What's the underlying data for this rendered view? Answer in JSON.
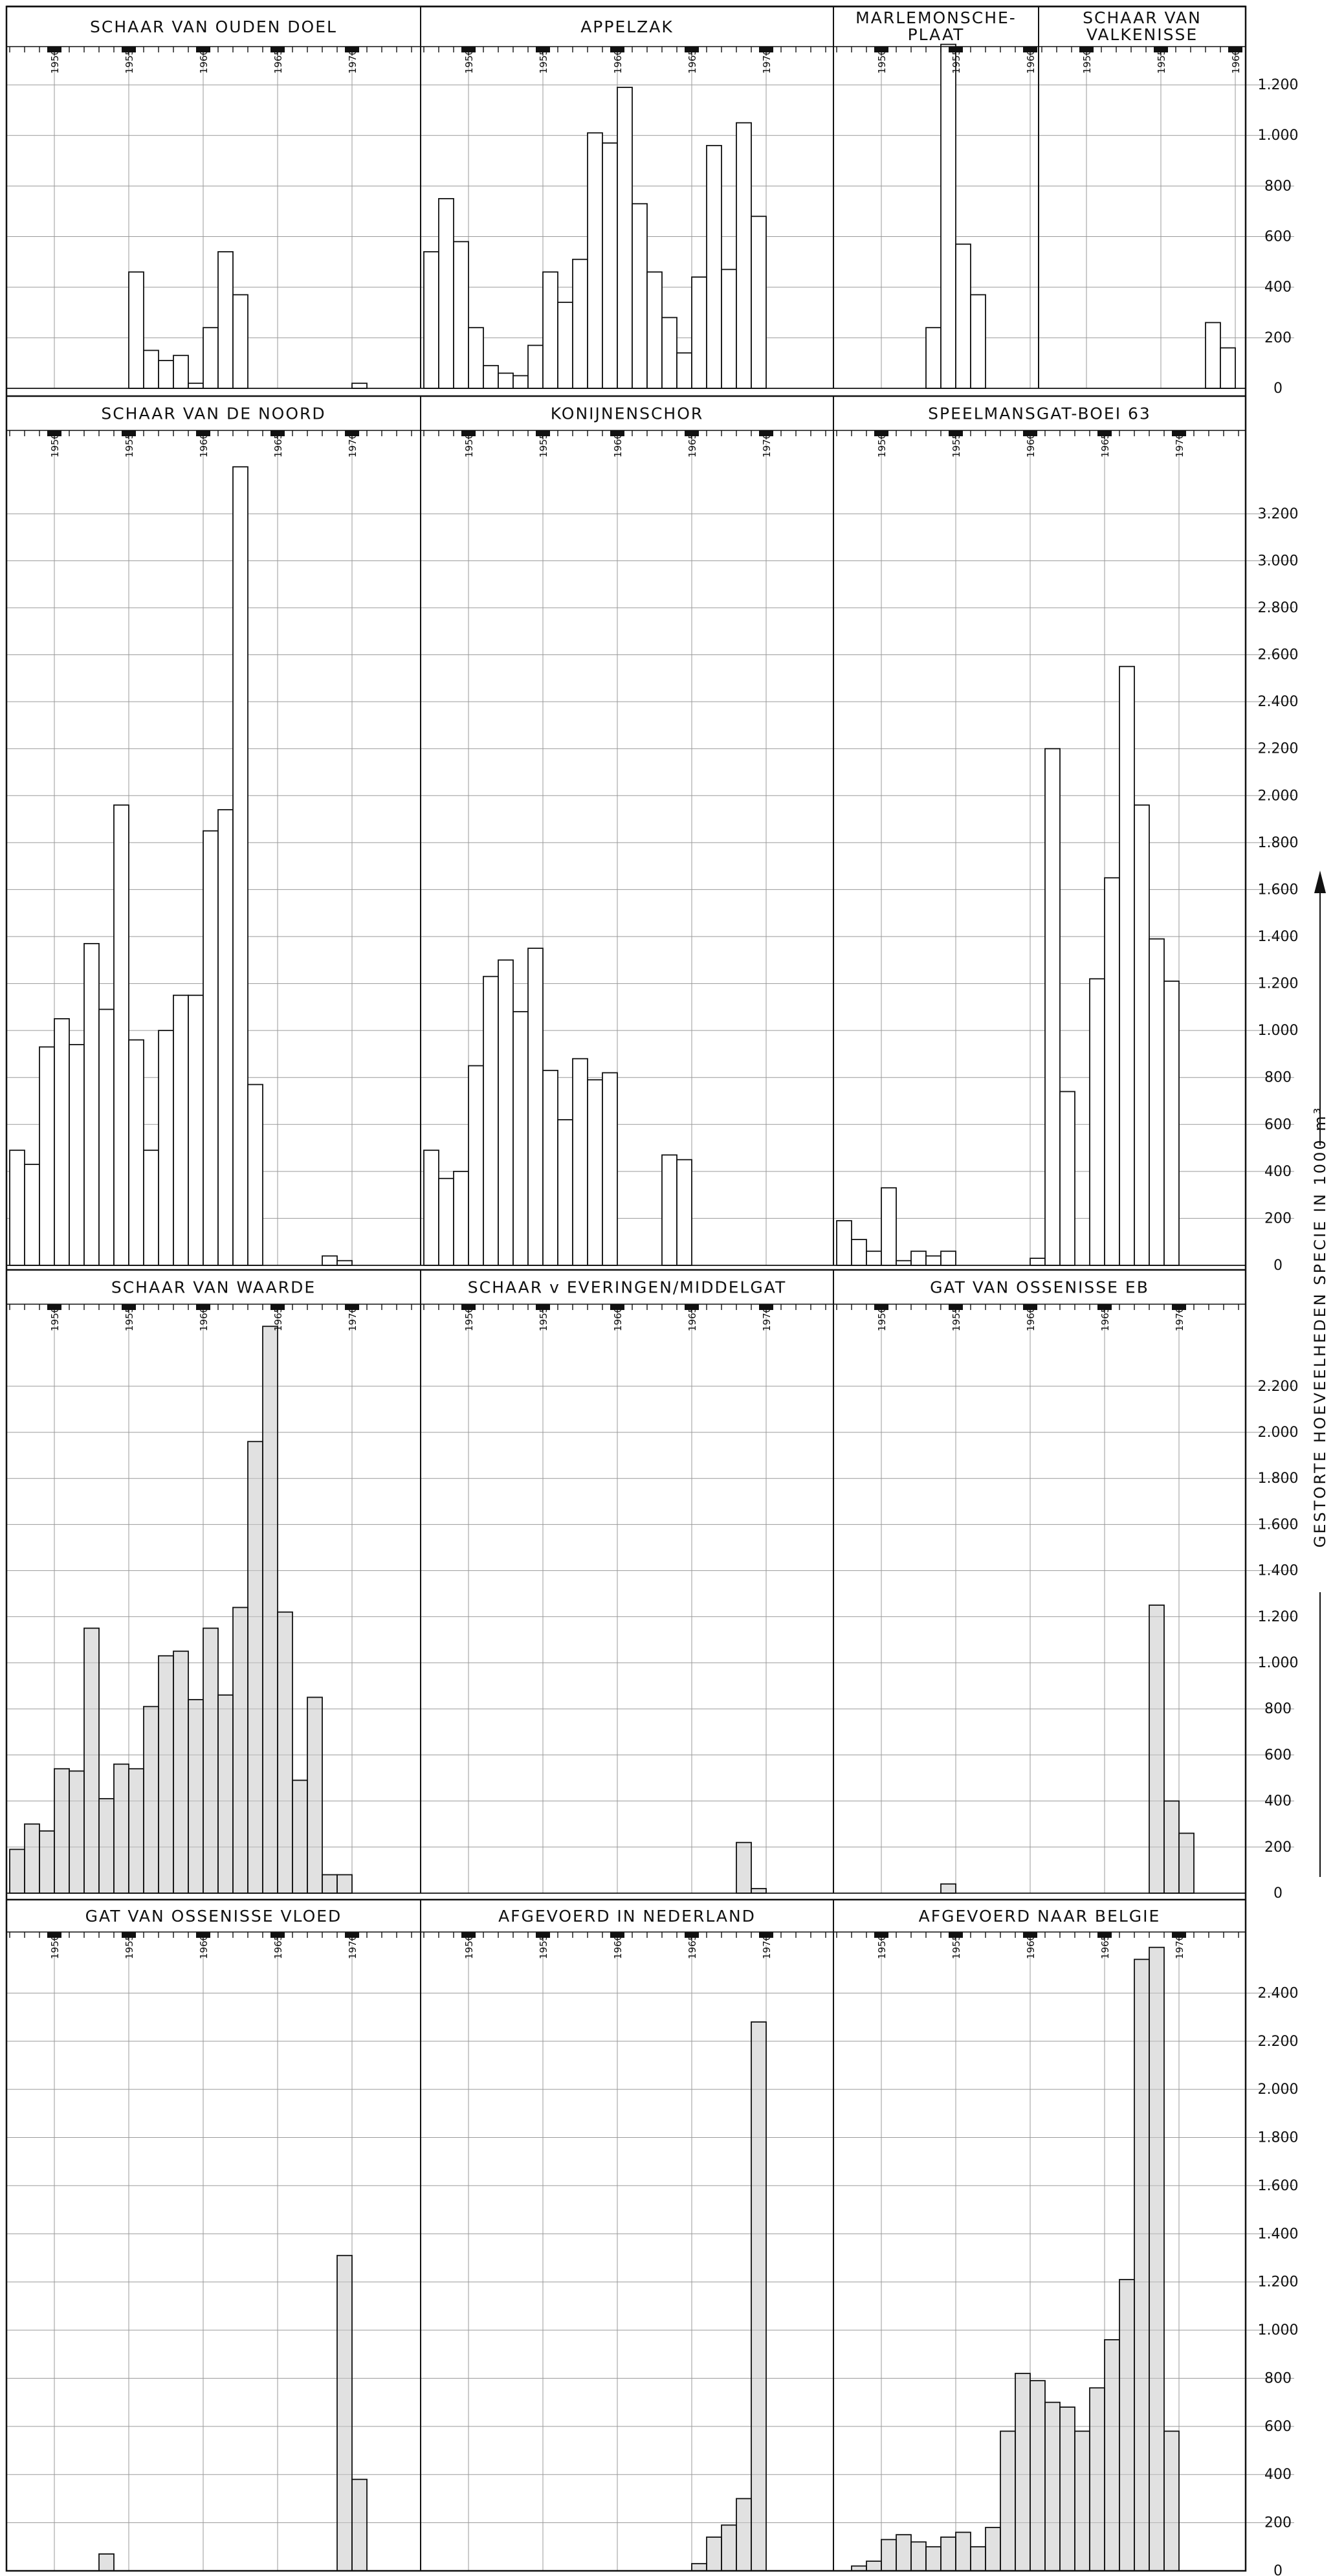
{
  "y_axis_label": "GESTORTE HOEVEELHEDEN SPECIE IN 1000 m³",
  "year_tick_labels": [
    "1950",
    "1955",
    "1960",
    "1965",
    "1970"
  ],
  "colors": {
    "ink": "#111111",
    "grid": "#9a9a9a",
    "shade": "#c8c8c8",
    "paper": "#ffffff"
  },
  "chart_data": [
    {
      "type": "bar",
      "title": "SCHAAR VAN OUDEN DOEL",
      "x": [
        1955,
        1956,
        1957,
        1958,
        1959,
        1960,
        1961,
        1962,
        1970
      ],
      "values": [
        460,
        150,
        110,
        130,
        20,
        240,
        540,
        370,
        20
      ],
      "ylim": [
        0,
        1300
      ],
      "yticks": [
        0,
        200,
        400,
        600,
        800,
        1000,
        1200
      ],
      "ytick_labels": [
        "0",
        "200",
        "400",
        "600",
        "800",
        "1.000",
        "1.200"
      ]
    },
    {
      "type": "bar",
      "title": "APPELZAK",
      "x": [
        1947,
        1948,
        1949,
        1950,
        1951,
        1952,
        1953,
        1954,
        1955,
        1956,
        1957,
        1958,
        1959,
        1960,
        1961,
        1962,
        1963,
        1964,
        1965,
        1966,
        1967,
        1968,
        1969
      ],
      "values": [
        540,
        750,
        580,
        240,
        90,
        60,
        50,
        170,
        460,
        340,
        510,
        1010,
        970,
        1190,
        730,
        460,
        280,
        140,
        440,
        960,
        470,
        1050,
        680
      ],
      "ylim": [
        0,
        1300
      ],
      "yticks": [
        0,
        200,
        400,
        600,
        800,
        1000,
        1200
      ],
      "ytick_labels": [
        "0",
        "200",
        "400",
        "600",
        "800",
        "1.000",
        "1.200"
      ]
    },
    {
      "type": "bar",
      "title": "MARLEMONSCHE-PLAAT",
      "x": [
        1953,
        1954,
        1955,
        1956
      ],
      "values": [
        240,
        1360,
        570,
        370
      ],
      "ylim": [
        0,
        1300
      ],
      "yticks": [
        0,
        200,
        400,
        600,
        800,
        1000,
        1200
      ],
      "ytick_labels": [
        "0",
        "200",
        "400",
        "600",
        "800",
        "1.000",
        "1.200"
      ]
    },
    {
      "type": "bar",
      "title": "SCHAAR VAN VALKENISSE",
      "x": [
        1958,
        1959
      ],
      "values": [
        260,
        160
      ],
      "ylim": [
        0,
        1300
      ],
      "yticks": [
        0,
        200,
        400,
        600,
        800,
        1000,
        1200
      ],
      "ytick_labels": [
        "0",
        "200",
        "400",
        "600",
        "800",
        "1.000",
        "1.200"
      ]
    },
    {
      "type": "bar",
      "title": "SCHAAR VAN DE NOORD",
      "x": [
        1947,
        1948,
        1949,
        1950,
        1951,
        1952,
        1953,
        1954,
        1955,
        1956,
        1957,
        1958,
        1959,
        1960,
        1961,
        1962,
        1963,
        1964,
        1965,
        1966,
        1967,
        1968,
        1969
      ],
      "values": [
        490,
        430,
        930,
        1050,
        940,
        1370,
        1090,
        1960,
        960,
        490,
        1000,
        1150,
        1150,
        1850,
        1940,
        3400,
        770,
        0,
        0,
        0,
        0,
        40,
        20
      ],
      "ylim": [
        0,
        3500
      ],
      "yticks": [
        0,
        200,
        400,
        600,
        800,
        1000,
        1200,
        1400,
        1600,
        1800,
        2000,
        2200,
        2400,
        2600,
        2800,
        3000,
        3200
      ],
      "ytick_labels": [
        "0",
        "200",
        "400",
        "600",
        "800",
        "1.000",
        "1.200",
        "1.400",
        "1.600",
        "1.800",
        "2.000",
        "2.200",
        "2.400",
        "2.600",
        "2.800",
        "3.000",
        "3.200"
      ]
    },
    {
      "type": "bar",
      "title": "KONIJNENSCHOR",
      "x": [
        1947,
        1948,
        1949,
        1950,
        1951,
        1952,
        1953,
        1954,
        1955,
        1956,
        1957,
        1958,
        1959,
        1960,
        1961,
        1962,
        1963,
        1964,
        1965,
        1966
      ],
      "values": [
        490,
        370,
        400,
        850,
        1230,
        1300,
        1080,
        1350,
        830,
        620,
        880,
        790,
        820,
        0,
        0,
        0,
        470,
        450,
        0,
        0
      ],
      "ylim": [
        0,
        3500
      ],
      "yticks": [
        0,
        200,
        400,
        600,
        800,
        1000,
        1200,
        1400,
        1600,
        1800,
        2000,
        2200,
        2400,
        2600,
        2800,
        3000,
        3200
      ],
      "ytick_labels": [
        "0",
        "200",
        "400",
        "600",
        "800",
        "1.000",
        "1.200",
        "1.400",
        "1.600",
        "1.800",
        "2.000",
        "2.200",
        "2.400",
        "2.600",
        "2.800",
        "3.000",
        "3.200"
      ]
    },
    {
      "type": "bar",
      "title": "SPEELMANSGAT-BOEI 63",
      "x": [
        1947,
        1948,
        1949,
        1950,
        1951,
        1952,
        1953,
        1954,
        1955,
        1956,
        1957,
        1958,
        1959,
        1960,
        1961,
        1962,
        1963,
        1964,
        1965,
        1966,
        1967,
        1968,
        1969
      ],
      "values": [
        190,
        110,
        60,
        330,
        20,
        60,
        40,
        60,
        0,
        0,
        0,
        0,
        0,
        30,
        2200,
        740,
        0,
        1220,
        1650,
        2550,
        1960,
        1390,
        1210
      ],
      "ylim": [
        0,
        3500
      ],
      "yticks": [
        0,
        200,
        400,
        600,
        800,
        1000,
        1200,
        1400,
        1600,
        1800,
        2000,
        2200,
        2400,
        2600,
        2800,
        3000,
        3200
      ],
      "ytick_labels": [
        "0",
        "200",
        "400",
        "600",
        "800",
        "1.000",
        "1.200",
        "1.400",
        "1.600",
        "1.800",
        "2.000",
        "2.200",
        "2.400",
        "2.600",
        "2.800",
        "3.000",
        "3.200"
      ]
    },
    {
      "type": "bar",
      "title": "SCHAAR VAN WAARDE",
      "x": [
        1947,
        1948,
        1949,
        1950,
        1951,
        1952,
        1953,
        1954,
        1955,
        1956,
        1957,
        1958,
        1959,
        1960,
        1961,
        1962,
        1963,
        1964,
        1965,
        1966,
        1967,
        1968,
        1969
      ],
      "values": [
        190,
        300,
        270,
        540,
        530,
        1150,
        410,
        560,
        540,
        810,
        1030,
        1050,
        840,
        1150,
        860,
        1240,
        1960,
        2460,
        1220,
        490,
        850,
        80,
        80
      ],
      "ylim": [
        0,
        2500
      ],
      "yticks": [
        0,
        200,
        400,
        600,
        800,
        1000,
        1200,
        1400,
        1600,
        1800,
        2000,
        2200
      ],
      "ytick_labels": [
        "0",
        "200",
        "400",
        "600",
        "800",
        "1.000",
        "1.200",
        "1.400",
        "1.600",
        "1.800",
        "2.000",
        "2.200"
      ]
    },
    {
      "type": "bar",
      "title": "SCHAAR v EVERINGEN/MIDDELGAT",
      "x": [
        1968,
        1969
      ],
      "values": [
        220,
        20
      ],
      "ylim": [
        0,
        2500
      ],
      "yticks": [
        0,
        200,
        400,
        600,
        800,
        1000,
        1200,
        1400,
        1600,
        1800,
        2000,
        2200
      ],
      "ytick_labels": [
        "0",
        "200",
        "400",
        "600",
        "800",
        "1.000",
        "1.200",
        "1.400",
        "1.600",
        "1.800",
        "2.000",
        "2.200"
      ]
    },
    {
      "type": "bar",
      "title": "GAT VAN OSSENISSE EB",
      "x": [
        1954,
        1968,
        1969,
        1970
      ],
      "values": [
        40,
        1250,
        400,
        260
      ],
      "ylim": [
        0,
        2500
      ],
      "yticks": [
        0,
        200,
        400,
        600,
        800,
        1000,
        1200,
        1400,
        1600,
        1800,
        2000,
        2200
      ],
      "ytick_labels": [
        "0",
        "200",
        "400",
        "600",
        "800",
        "1.000",
        "1.200",
        "1.400",
        "1.600",
        "1.800",
        "2.000",
        "2.200"
      ]
    },
    {
      "type": "bar",
      "title": "GAT VAN OSSENISSE VLOED",
      "x": [
        1953,
        1969,
        1970
      ],
      "values": [
        70,
        1310,
        380
      ],
      "ylim": [
        0,
        2600
      ],
      "yticks": [
        0,
        200,
        400,
        600,
        800,
        1000,
        1200,
        1400,
        1600,
        1800,
        2000,
        2200,
        2400
      ],
      "ytick_labels": [
        "0",
        "200",
        "400",
        "600",
        "800",
        "1.000",
        "1.200",
        "1.400",
        "1.600",
        "1.800",
        "2.000",
        "2.200",
        "2.400"
      ]
    },
    {
      "type": "bar",
      "title": "AFGEVOERD IN NEDERLAND",
      "x": [
        1965,
        1966,
        1967,
        1968,
        1969
      ],
      "values": [
        30,
        140,
        190,
        300,
        2280
      ],
      "ylim": [
        0,
        2600
      ],
      "yticks": [
        0,
        200,
        400,
        600,
        800,
        1000,
        1200,
        1400,
        1600,
        1800,
        2000,
        2200,
        2400
      ],
      "ytick_labels": [
        "0",
        "200",
        "400",
        "600",
        "800",
        "1.000",
        "1.200",
        "1.400",
        "1.600",
        "1.800",
        "2.000",
        "2.200",
        "2.400"
      ]
    },
    {
      "type": "bar",
      "title": "AFGEVOERD NAAR BELGIE",
      "x": [
        1948,
        1949,
        1950,
        1951,
        1952,
        1953,
        1954,
        1955,
        1956,
        1957,
        1958,
        1959,
        1960,
        1961,
        1962,
        1963,
        1964,
        1965,
        1966,
        1967,
        1968,
        1969
      ],
      "values": [
        20,
        40,
        130,
        150,
        120,
        100,
        140,
        160,
        100,
        180,
        580,
        820,
        790,
        700,
        680,
        580,
        760,
        960,
        1210,
        2540,
        2590,
        580
      ],
      "ylim": [
        0,
        2600
      ],
      "yticks": [
        0,
        200,
        400,
        600,
        800,
        1000,
        1200,
        1400,
        1600,
        1800,
        2000,
        2200,
        2400
      ],
      "ytick_labels": [
        "0",
        "200",
        "400",
        "600",
        "800",
        "1.000",
        "1.200",
        "1.400",
        "1.600",
        "1.800",
        "2.000",
        "2.200",
        "2.400"
      ]
    }
  ]
}
